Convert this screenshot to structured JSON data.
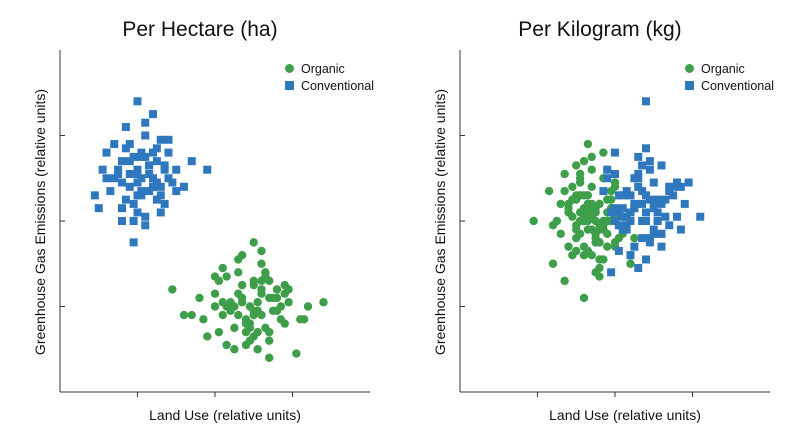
{
  "colors": {
    "organic": "#3f9e4a",
    "conventional": "#2f78bd",
    "axis": "#333333"
  },
  "legend": {
    "organic": "Organic",
    "conventional": "Conventional"
  },
  "chart_data": [
    {
      "type": "scatter",
      "title": "Per Hectare (ha)",
      "xlabel": "Land Use (relative units)",
      "ylabel": "Greenhouse Gas Emissions (relative units)",
      "xlim": [
        0,
        4
      ],
      "ylim": [
        0,
        4
      ],
      "series": [
        {
          "name": "Organic",
          "marker": "circle",
          "color": "#3f9e4a",
          "x": [
            2.25,
            2.6,
            2.9,
            1.8,
            2.4,
            2.7,
            2.1,
            2.55,
            2.35,
            2.8,
            2.0,
            3.1,
            2.45,
            2.65,
            1.9,
            2.3,
            2.75,
            2.5,
            2.15,
            2.95,
            2.4,
            2.6,
            2.2,
            2.85,
            2.05,
            3.2,
            1.7,
            2.5,
            2.7,
            2.3,
            2.55,
            2.1,
            2.9,
            2.45,
            2.35,
            2.65,
            2.0,
            2.8,
            2.25,
            2.6,
            1.45,
            3.4,
            2.5,
            2.7,
            2.15,
            2.4,
            2.95,
            2.3,
            2.55,
            2.75,
            2.05,
            2.6,
            2.45,
            2.85,
            1.85,
            3.05,
            2.35,
            2.5,
            2.2,
            2.65,
            2.4,
            2.7,
            2.1,
            2.55,
            2.3,
            2.9,
            2.45,
            2.6,
            2.0,
            2.8,
            2.25,
            2.5,
            1.6,
            3.15,
            2.35,
            2.7,
            2.5,
            2.15,
            2.6,
            2.4
          ],
          "y": [
            1.0,
            1.2,
            0.8,
            1.1,
            0.7,
            1.3,
            0.9,
            1.05,
            1.25,
            0.95,
            1.15,
            0.85,
            0.75,
            1.35,
            0.65,
            1.4,
            1.1,
            0.9,
            1.0,
            1.2,
            0.55,
            1.5,
            1.05,
            0.85,
            0.7,
            1.0,
            0.9,
            1.3,
            0.6,
            1.15,
            0.95,
            1.45,
            1.25,
            0.8,
            1.6,
            0.75,
            1.0,
            1.1,
            0.5,
            0.9,
            1.2,
            1.05,
            1.75,
            0.4,
            1.35,
            0.85,
            1.05,
            1.55,
            0.7,
            0.95,
            1.3,
            1.15,
            0.6,
            1.0,
            0.85,
            0.45,
            1.1,
            1.25,
            0.95,
            1.4,
            0.8,
            0.7,
            1.05,
            0.5,
            0.9,
            1.15,
            1.0,
            1.65,
            1.35,
            1.2,
            0.75,
            0.65,
            0.9,
            0.85,
            1.05,
            1.1,
            0.95,
            0.55,
            1.3,
            0.8
          ]
        },
        {
          "name": "Conventional",
          "marker": "square",
          "color": "#2f78bd",
          "x": [
            1.0,
            1.2,
            0.9,
            1.4,
            0.8,
            1.1,
            1.3,
            0.7,
            1.0,
            1.5,
            0.6,
            1.2,
            0.95,
            1.35,
            0.85,
            1.15,
            1.05,
            0.75,
            1.25,
            1.45,
            1.1,
            0.9,
            1.3,
            1.0,
            0.55,
            1.6,
            1.2,
            0.8,
            1.05,
            1.4,
            0.65,
            1.15,
            0.95,
            1.25,
            1.0,
            1.35,
            0.85,
            1.1,
            0.45,
            1.9,
            1.05,
            0.7,
            1.2,
            0.9,
            1.3,
            1.0,
            0.6,
            1.5,
            1.15,
            0.8,
            1.25,
            1.1,
            0.95,
            1.4,
            0.75,
            1.05,
            1.2,
            0.85,
            1.3,
            1.0,
            1.7,
            0.5,
            1.15,
            0.9,
            1.1,
            1.35,
            0.8,
            1.05,
            1.25,
            0.95
          ],
          "y": [
            2.6,
            2.8,
            2.4,
            2.5,
            2.7,
            3.0,
            2.3,
            2.9,
            2.1,
            2.6,
            2.5,
            2.4,
            2.75,
            2.2,
            3.1,
            2.65,
            2.35,
            2.55,
            2.85,
            2.45,
            2.05,
            2.7,
            2.95,
            2.3,
            2.6,
            2.4,
            3.25,
            2.15,
            2.5,
            2.8,
            2.35,
            2.55,
            2.0,
            2.7,
            2.45,
            2.6,
            2.25,
            3.15,
            2.3,
            2.6,
            2.75,
            2.5,
            2.4,
            2.9,
            2.1,
            2.55,
            2.8,
            2.35,
            2.65,
            2.0,
            2.45,
            2.75,
            2.2,
            2.95,
            2.6,
            2.3,
            2.5,
            2.85,
            2.4,
            3.4,
            2.7,
            2.15,
            2.35,
            2.55,
            1.95,
            2.65,
            2.45,
            2.8,
            2.25,
            1.75
          ]
        }
      ]
    },
    {
      "type": "scatter",
      "title": "Per Kilogram (kg)",
      "xlabel": "Land Use (relative units)",
      "ylabel": "Greenhouse Gas Emissions (relative units)",
      "xlim": [
        0,
        4
      ],
      "ylim": [
        0,
        4
      ],
      "series": [
        {
          "name": "Organic",
          "marker": "circle",
          "color": "#3f9e4a",
          "x": [
            1.6,
            1.8,
            1.5,
            2.0,
            1.7,
            1.4,
            1.9,
            1.65,
            1.85,
            1.55,
            1.75,
            2.1,
            1.45,
            1.95,
            1.6,
            1.8,
            1.35,
            2.05,
            1.7,
            1.5,
            1.9,
            1.65,
            1.25,
            2.15,
            1.8,
            1.55,
            1.75,
            1.4,
            2.0,
            1.6,
            1.85,
            1.7,
            1.3,
            1.95,
            1.5,
            1.8,
            1.65,
            2.2,
            1.45,
            1.75,
            1.6,
            1.9,
            1.55,
            1.2,
            2.0,
            1.7,
            1.85,
            1.5,
            1.65,
            1.8,
            1.4,
            1.95,
            1.6,
            1.75,
            1.35,
            2.05,
            1.55,
            1.7,
            1.85,
            1.5,
            1.65,
            1.9,
            1.45,
            1.8,
            1.6,
            2.1,
            1.7,
            1.55,
            1.75,
            1.3,
            1.95,
            1.6,
            1.85,
            1.5,
            1.7,
            1.15,
            1.8,
            1.65,
            2.0,
            1.4,
            1.75,
            1.6,
            1.9,
            1.55,
            1.7,
            1.85,
            1.45,
            1.65,
            1.8,
            1.5,
            0.95,
            2.25,
            1.6,
            1.75,
            1.2,
            1.9,
            1.35,
            2.0,
            1.55,
            1.7
          ],
          "y": [
            2.0,
            2.2,
            1.8,
            2.4,
            1.9,
            2.1,
            1.7,
            2.3,
            2.0,
            2.5,
            1.85,
            2.05,
            1.6,
            2.25,
            2.15,
            1.75,
            2.35,
            1.95,
            2.6,
            1.65,
            2.1,
            1.9,
            2.0,
            2.3,
            1.55,
            2.45,
            1.8,
            2.2,
            1.7,
            2.05,
            1.95,
            2.4,
            1.85,
            2.15,
            2.65,
            1.75,
            2.0,
            1.5,
            2.25,
            2.1,
            2.7,
            1.85,
            2.3,
            1.95,
            2.05,
            1.6,
            2.5,
            1.9,
            2.2,
            1.45,
            2.15,
            2.35,
            1.7,
            2.0,
            2.55,
            1.8,
            2.1,
            2.75,
            1.9,
            2.25,
            1.65,
            2.0,
            2.4,
            1.35,
            2.3,
            1.85,
            2.05,
            2.55,
            1.75,
            2.2,
            2.0,
            1.6,
            2.8,
            1.95,
            2.15,
            2.35,
            1.9,
            2.1,
            2.45,
            1.7,
            1.4,
            2.0,
            2.6,
            1.85,
            2.2,
            1.55,
            2.05,
            2.9,
            1.95,
            2.3,
            2.0,
            1.8,
            1.1,
            2.15,
            1.5,
            2.25,
            1.3,
            1.75,
            2.0,
            1.9
          ]
        },
        {
          "name": "Conventional",
          "marker": "square",
          "color": "#2f78bd",
          "x": [
            2.2,
            2.4,
            2.0,
            2.6,
            2.3,
            2.1,
            2.5,
            1.9,
            2.35,
            2.7,
            2.15,
            2.45,
            2.05,
            2.55,
            2.25,
            2.8,
            1.95,
            2.4,
            2.3,
            2.6,
            2.1,
            2.5,
            2.2,
            2.75,
            2.0,
            2.45,
            2.35,
            2.65,
            2.15,
            1.85,
            2.55,
            2.25,
            2.9,
            2.05,
            2.4,
            2.3,
            2.6,
            2.2,
            2.5,
            2.1,
            2.7,
            2.35,
            1.9,
            2.45,
            2.85,
            2.25,
            2.0,
            2.55,
            2.15,
            2.4,
            2.65,
            2.3,
            2.5,
            2.05,
            2.75,
            2.2,
            2.95,
            2.45,
            2.1,
            2.6,
            2.35,
            2.8,
            2.0,
            2.5,
            3.1,
            2.25,
            2.4,
            2.15,
            2.7,
            2.3,
            2.55,
            1.95,
            2.45,
            2.2,
            2.6,
            2.35,
            2.05,
            2.85,
            2.4,
            2.25
          ],
          "y": [
            2.1,
            2.3,
            2.0,
            2.2,
            2.4,
            1.9,
            2.15,
            2.5,
            1.8,
            2.35,
            2.05,
            2.6,
            1.95,
            2.25,
            1.7,
            2.45,
            2.1,
            2.0,
            2.55,
            1.85,
            2.3,
            2.2,
            1.6,
            2.4,
            2.15,
            1.75,
            2.65,
            2.05,
            1.9,
            2.35,
            2.0,
            2.5,
            2.2,
            1.65,
            2.1,
            2.75,
            1.85,
            2.3,
            2.45,
            2.05,
            1.95,
            2.2,
            2.6,
            1.8,
            2.4,
            2.15,
            2.8,
            2.0,
            2.35,
            1.55,
            2.25,
            2.5,
            1.9,
            2.1,
            2.3,
            2.0,
            2.45,
            2.7,
            2.15,
            1.7,
            2.35,
            2.05,
            2.55,
            1.85,
            2.05,
            2.2,
            2.85,
            1.95,
            2.4,
            1.45,
            2.1,
            1.4,
            2.25,
            1.6,
            2.65,
            2.0,
            2.3,
            1.9,
            3.4,
            2.15
          ]
        }
      ]
    }
  ]
}
